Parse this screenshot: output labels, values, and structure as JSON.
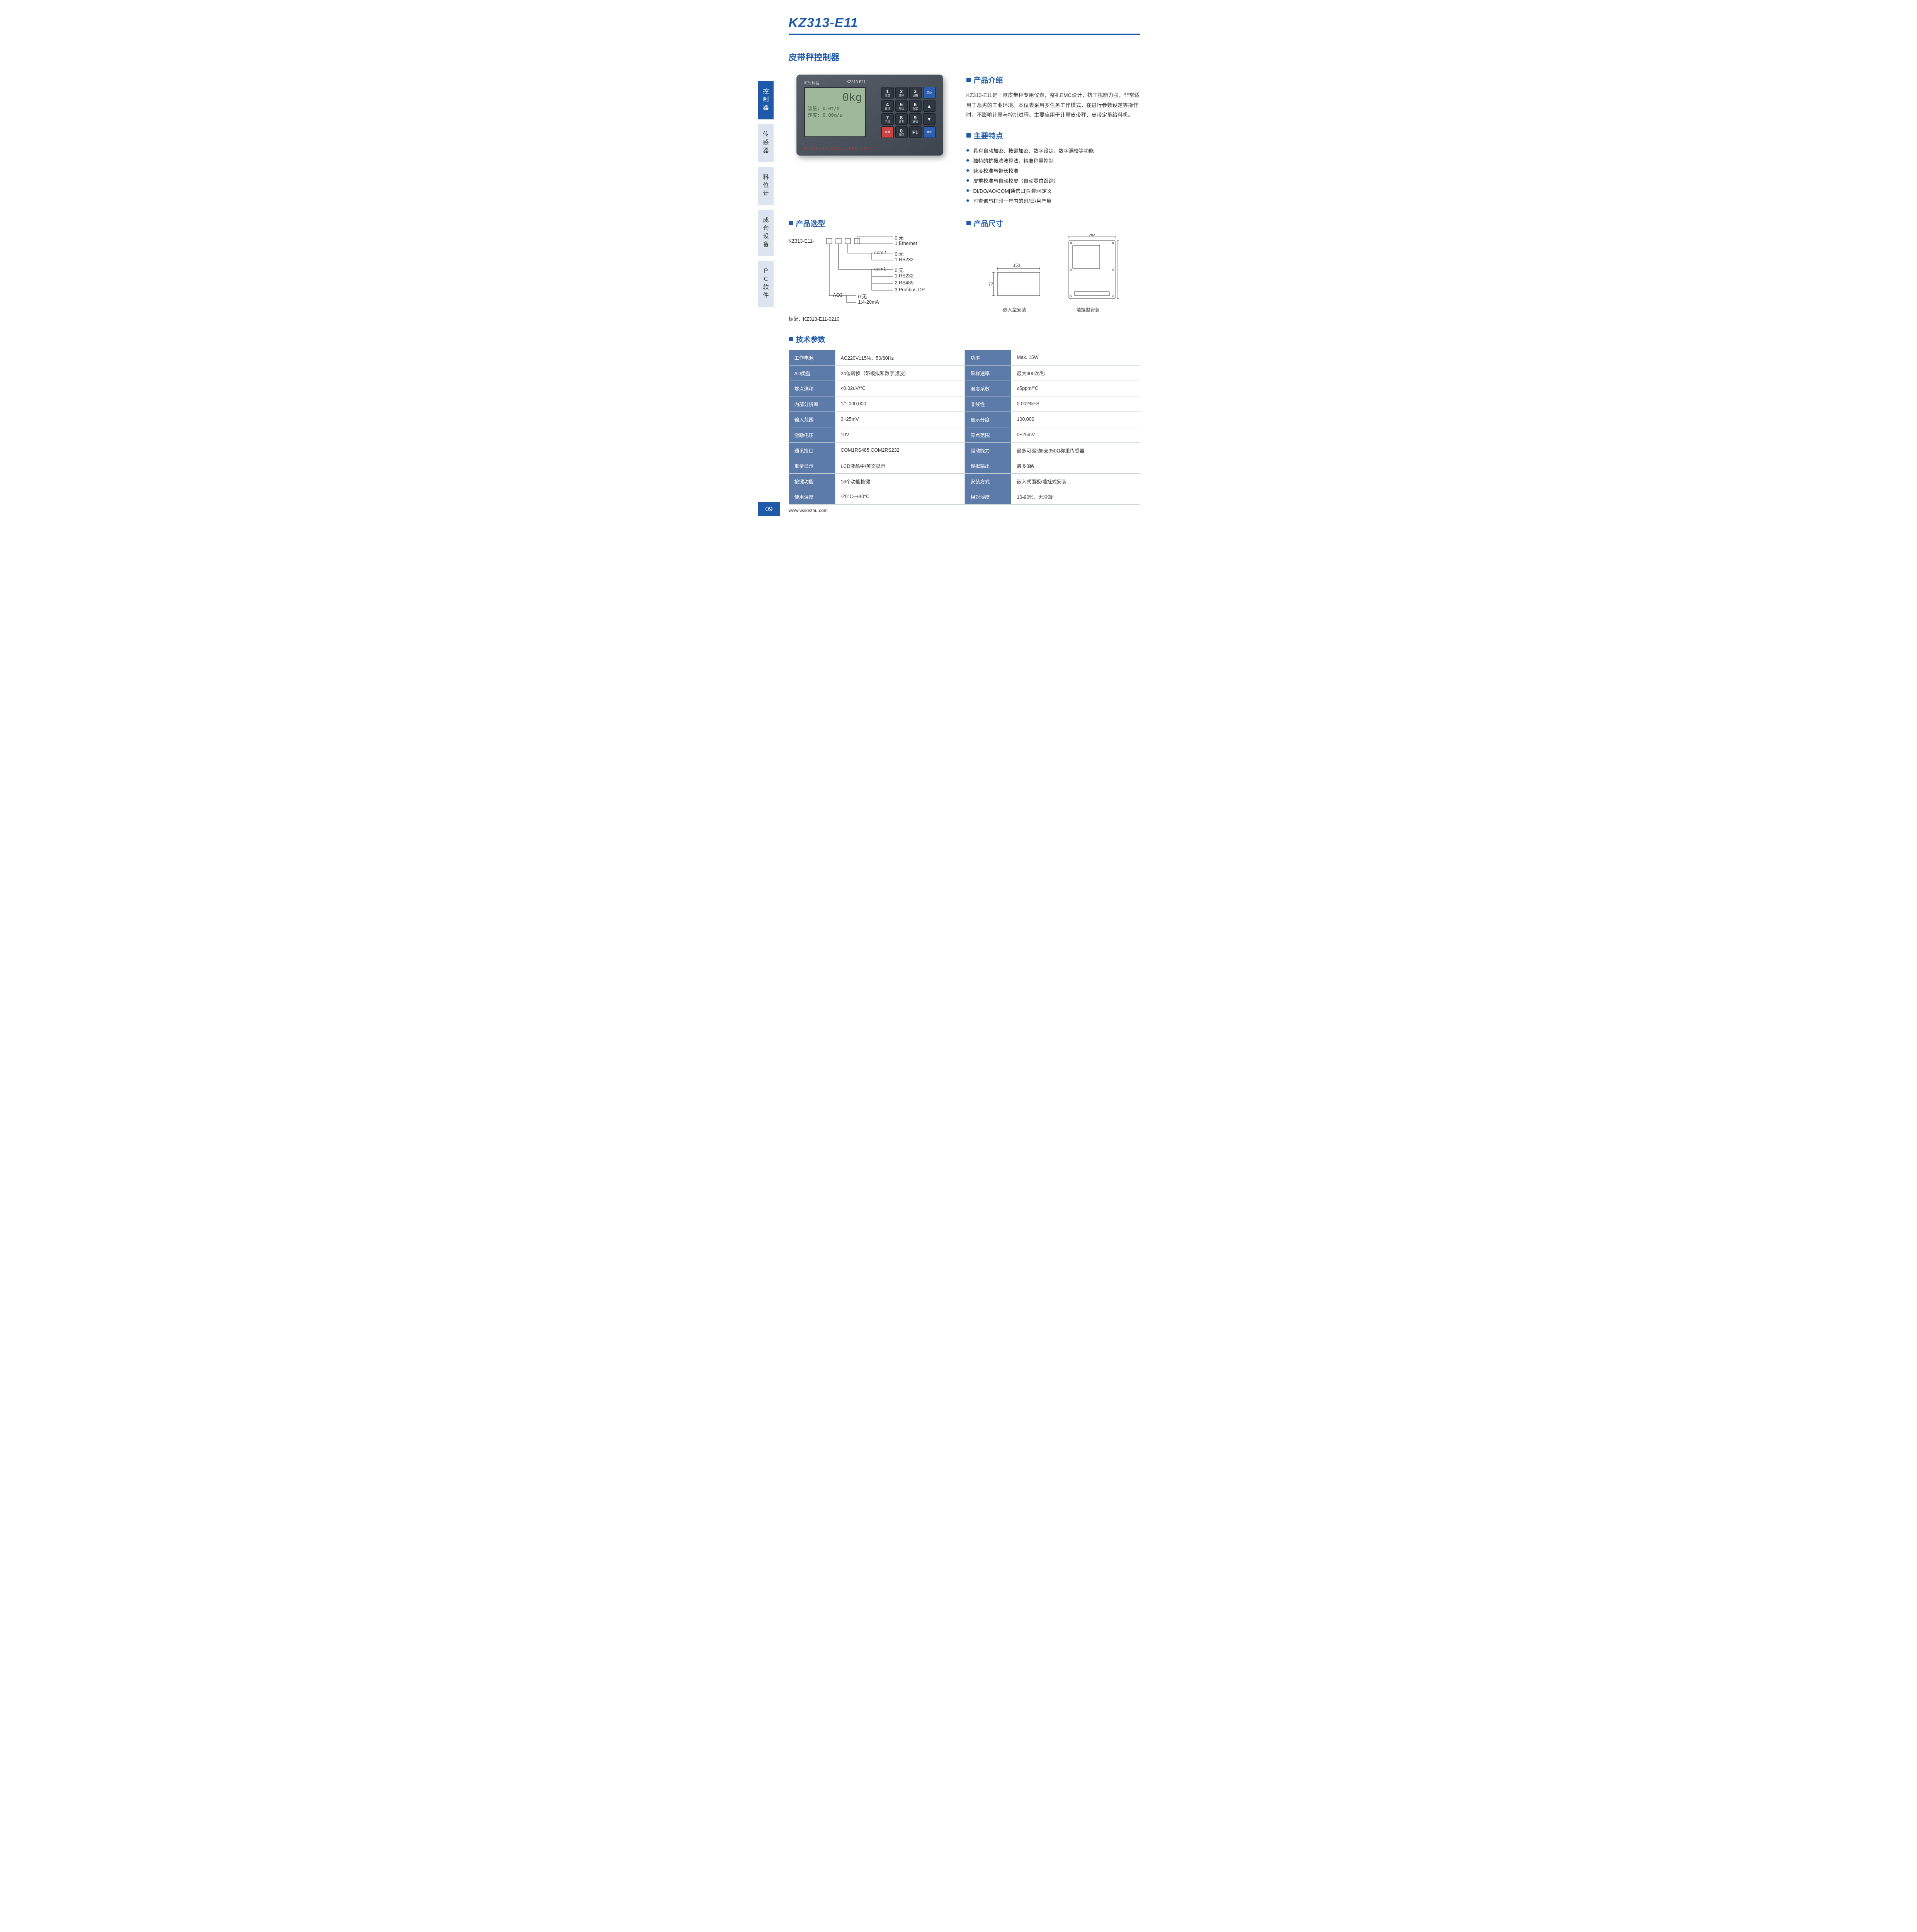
{
  "title": "KZ313-E11",
  "subtitle": "皮带秤控制器",
  "sidebar": [
    {
      "label": "控制器",
      "active": true
    },
    {
      "label": "传感器",
      "active": false
    },
    {
      "label": "料位计",
      "active": false
    },
    {
      "label": "成套设备",
      "active": false
    },
    {
      "label": "ＰＣ软件",
      "active": false
    }
  ],
  "device": {
    "brand": "可竹科技",
    "model": "KZ313-E11",
    "screen_big": "0kg",
    "screen_l1": "流量:    0.0t/h",
    "screen_l2": "速度:   0.00m/s",
    "leds": "RUN  AUTO  EXT  ALARM LOCK",
    "keys": [
      {
        "n": "1",
        "s": "设定"
      },
      {
        "n": "2",
        "s": "选择"
      },
      {
        "n": "3",
        "s": "日期"
      },
      {
        "n": "",
        "s": "菜单",
        "cls": "blue"
      },
      {
        "n": "4",
        "s": "自动"
      },
      {
        "n": "5",
        "s": "外给"
      },
      {
        "n": "6",
        "s": "标定"
      },
      {
        "n": "▲",
        "s": "",
        "cls": "sym"
      },
      {
        "n": "7",
        "s": "手动"
      },
      {
        "n": "8",
        "s": "调零"
      },
      {
        "n": "9",
        "s": "联机"
      },
      {
        "n": "▼",
        "s": "",
        "cls": "sym"
      },
      {
        "n": "",
        "s": "软键",
        "cls": "red"
      },
      {
        "n": "0",
        "s": "打印"
      },
      {
        "n": "F1",
        "s": ""
      },
      {
        "n": "",
        "s": "确定",
        "cls": "blue"
      }
    ]
  },
  "sec_intro": "产品介绍",
  "intro": "KZ313-E11是一款皮带秤专用仪表，整机EMC设计，抗干扰能力强，非常适用于恶劣的工业环境。本仪表采用多任务工作模式，在进行参数设定等操作时，不影响计量与控制过程。主要应用于计量皮带秤、皮带定量给料机。",
  "sec_feat": "主要特点",
  "features": [
    "具有自动加密、按键加密、数字设定、数字调校等功能",
    "独特的抗振滤波算法，精准称量控制",
    "速度校准与带长校准",
    "皮重校准与自动校皮（自动零位跟踪）",
    "DI/DO/AO/COM[通信口]功能可定义",
    "可查询与打印一年内的班/日/月产量"
  ],
  "sec_sel": "产品选型",
  "selection": {
    "prefix": "KZ313-E11-",
    "groups": [
      {
        "tag": "",
        "opts": [
          "0:无",
          "1:Ethernet"
        ]
      },
      {
        "tag": "com2",
        "opts": [
          "0:无",
          "1:RS232"
        ]
      },
      {
        "tag": "com1",
        "opts": [
          "0:无",
          "1:RS232",
          "2:RS485",
          "3:Profibus-DP"
        ]
      },
      {
        "tag": "AO3",
        "opts": [
          "0:无",
          "1:4-20mA"
        ]
      }
    ],
    "note": "标配：KZ313-E11-0210"
  },
  "sec_dim": "产品尺寸",
  "dims": {
    "panel_w": "153",
    "panel_h": "77",
    "panel_label": "嵌入型安装",
    "wall_w": "202",
    "wall_label": "墙挂型安装"
  },
  "sec_spec": "技术参数",
  "specs": [
    [
      "工作电源",
      "AC220V±15%，50/60Hz",
      "功率",
      "Max. 15W"
    ],
    [
      "AD类型",
      "24位转换（带模拟和数字滤波）",
      "采样速率",
      "最大400次/秒"
    ],
    [
      "零点漂移",
      "<0.02uV/°C",
      "温度系数",
      "≤5ppm/°C"
    ],
    [
      "内部分辨率",
      "1/1,000,000",
      "非线性",
      "0.002%FS"
    ],
    [
      "输入范围",
      "0~25mV",
      "显示分度",
      "100,000"
    ],
    [
      "激励电压",
      "10V",
      "零点范围",
      "0~25mV"
    ],
    [
      "通讯接口",
      "COM1RS485,COM2RS232",
      "驱动能力",
      "最多可驱动8支350Ω称重传感器"
    ],
    [
      "重量显示",
      "LCD液晶中/英文显示",
      "模拟输出",
      "最多3路"
    ],
    [
      "按键功能",
      "16个功能按键",
      "安装方式",
      "嵌入式面板/墙挂式安装"
    ],
    [
      "使用温度",
      "-20°C~+40°C",
      "相对湿度",
      "10-90%，无冷凝"
    ]
  ],
  "page_num": "09",
  "url": "www.wxkezhu.com"
}
